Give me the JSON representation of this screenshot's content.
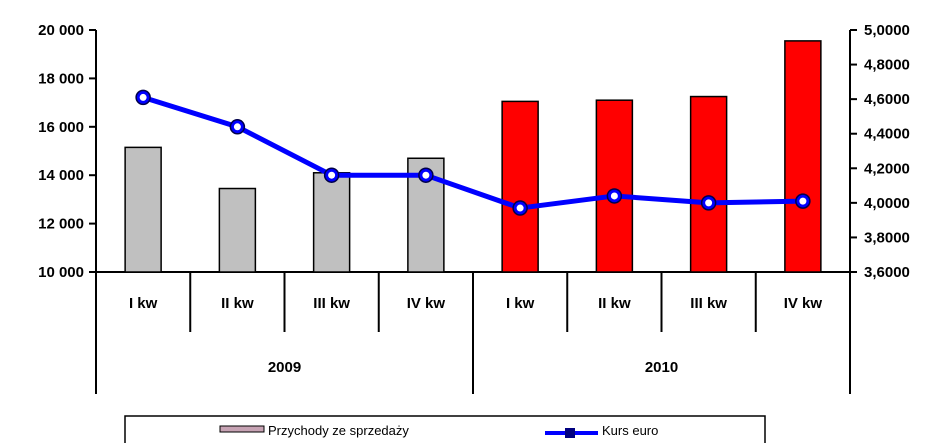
{
  "chart_data": {
    "type": "bar",
    "title": "",
    "categories": [
      "I kw",
      "II kw",
      "III kw",
      "IV kw",
      "I kw",
      "II kw",
      "III kw",
      "IV kw"
    ],
    "groups": [
      {
        "label": "2009",
        "count": 4,
        "bar_color": "#c0c0c0"
      },
      {
        "label": "2010",
        "count": 4,
        "bar_color": "#ff0000"
      }
    ],
    "series": [
      {
        "name": "Przychody ze sprzedaży",
        "type": "bar",
        "axis": "left",
        "values": [
          15150,
          13450,
          14100,
          14700,
          17050,
          17100,
          17250,
          19550
        ]
      },
      {
        "name": "Kurs euro",
        "type": "line",
        "axis": "right",
        "color": "#0000ff",
        "values": [
          4.61,
          4.44,
          4.16,
          4.16,
          3.97,
          4.04,
          4.0,
          4.01
        ]
      }
    ],
    "y_left": {
      "min": 10000,
      "max": 20000,
      "ticks": [
        "10 000",
        "12 000",
        "14 000",
        "16 000",
        "18 000",
        "20 000"
      ]
    },
    "y_right": {
      "min": 3.6,
      "max": 5.0,
      "ticks": [
        "3,6000",
        "3,8000",
        "4,0000",
        "4,2000",
        "4,4000",
        "4,6000",
        "4,8000",
        "5,0000"
      ]
    },
    "legend": {
      "placement": "bottom",
      "swatch_color": "#c7a3b4"
    }
  }
}
